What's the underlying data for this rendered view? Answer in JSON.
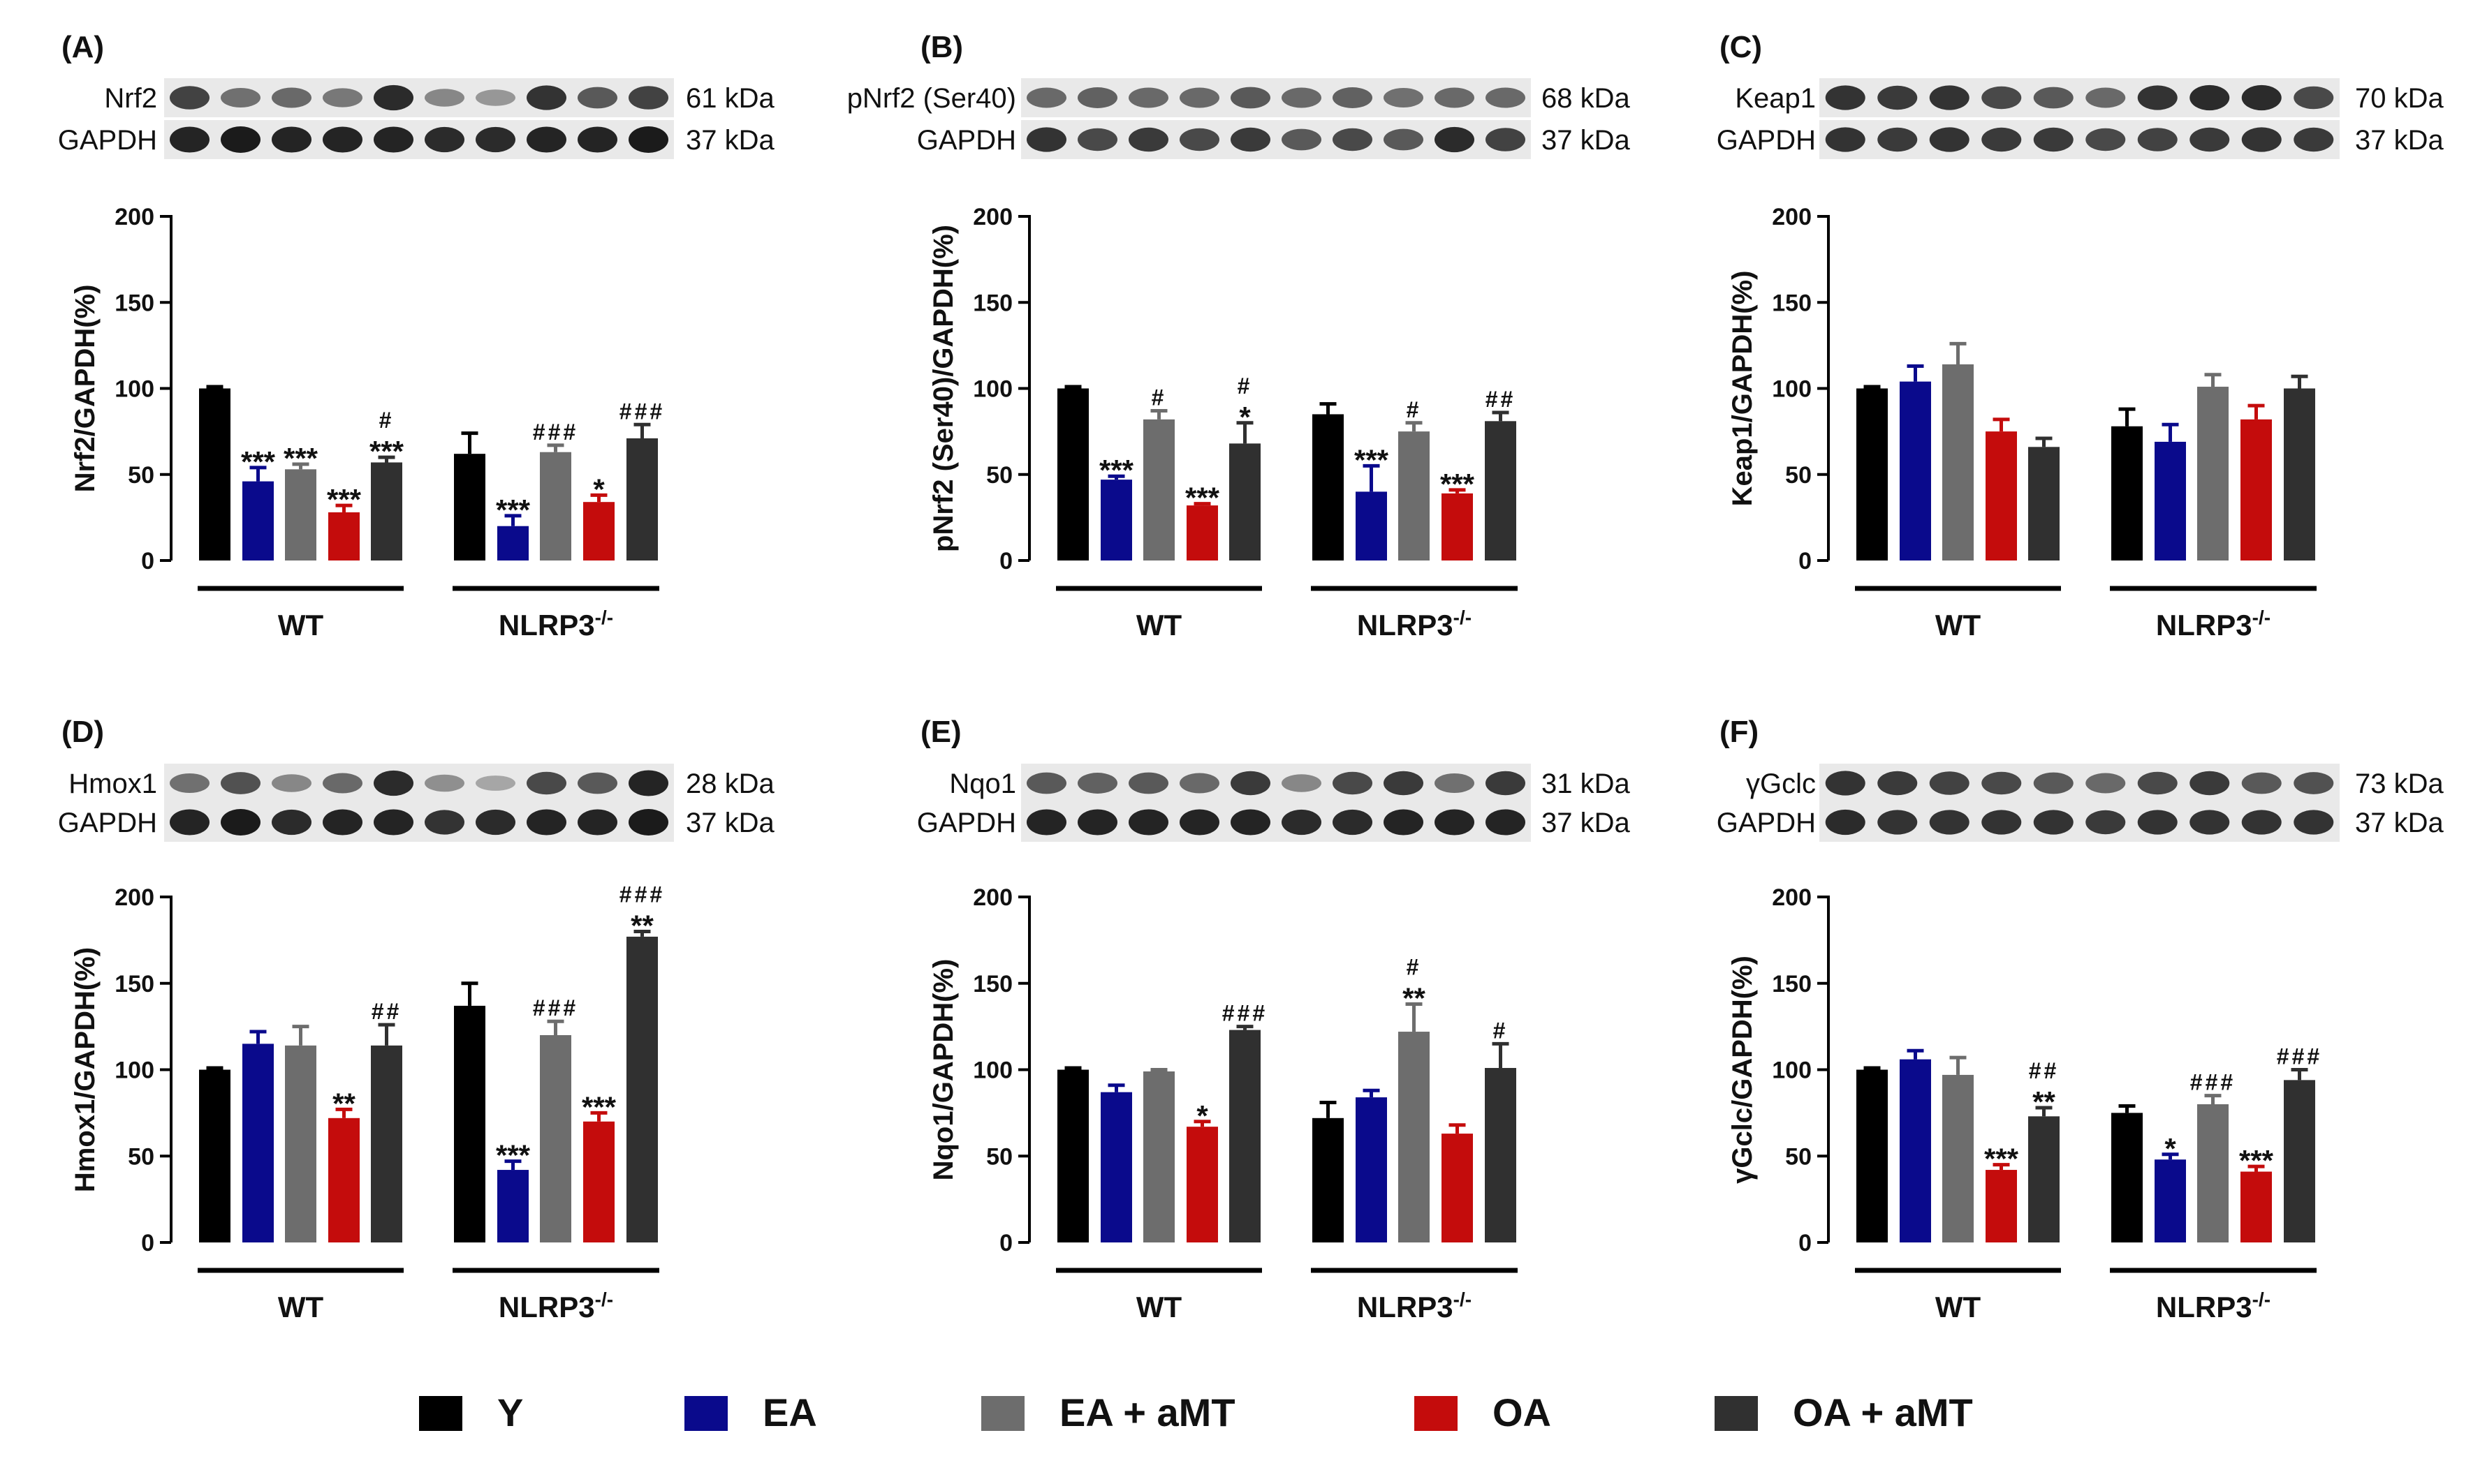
{
  "colors": {
    "Y": "#000000",
    "EA": "#0a0a8c",
    "EA + aMT": "#6d6d6d",
    "OA": "#c40c0c",
    "OA + aMT": "#303030",
    "blot_bg": "#e9e9e9",
    "blot_band": "#1b1b1b"
  },
  "legend": {
    "items": [
      {
        "label": "Y",
        "color_key": "Y"
      },
      {
        "label": "EA",
        "color_key": "EA"
      },
      {
        "label": "EA + aMT",
        "color_key": "EA + aMT"
      },
      {
        "label": "OA",
        "color_key": "OA"
      },
      {
        "label": "OA + aMT",
        "color_key": "OA + aMT"
      }
    ]
  },
  "chart_data": [
    {
      "type": "bar",
      "panel": "(A)",
      "ylabel": "Nrf2/GAPDH(%)",
      "ylim": [
        0,
        200
      ],
      "yticks": [
        "0",
        "50",
        "100",
        "150",
        "200"
      ],
      "groups": [
        {
          "name": "WT",
          "sup": ""
        },
        {
          "name": "NLRP3",
          "sup": "-/-"
        }
      ],
      "series": [
        "Y",
        "EA",
        "EA + aMT",
        "OA",
        "OA + aMT"
      ],
      "values": [
        [
          100,
          46,
          53,
          28,
          57
        ],
        [
          62,
          20,
          63,
          34,
          71
        ]
      ],
      "errors": [
        [
          1,
          8,
          3,
          4,
          3
        ],
        [
          12,
          6,
          4,
          4,
          8
        ]
      ],
      "annotations": [
        [
          "",
          "***",
          "***",
          "***",
          "#|***"
        ],
        [
          "",
          "***",
          "###",
          "*",
          "###"
        ]
      ],
      "blot": {
        "protein": "Nrf2",
        "protein_kda": "61 kDa",
        "loading": "GAPDH",
        "loading_kda": "37 kDa",
        "protein_bands": [
          0.75,
          0.45,
          0.5,
          0.4,
          0.9,
          0.3,
          0.2,
          0.85,
          0.6,
          0.75
        ],
        "loading_bands": [
          0.95,
          1,
          0.95,
          0.95,
          0.95,
          0.9,
          0.9,
          0.95,
          0.95,
          1
        ]
      }
    },
    {
      "type": "bar",
      "panel": "(B)",
      "ylabel": "pNrf2 (Ser40)/GAPDH(%)",
      "ylim": [
        0,
        200
      ],
      "yticks": [
        "0",
        "50",
        "100",
        "150",
        "200"
      ],
      "groups": [
        {
          "name": "WT",
          "sup": ""
        },
        {
          "name": "NLRP3",
          "sup": "-/-"
        }
      ],
      "series": [
        "Y",
        "EA",
        "EA + aMT",
        "OA",
        "OA + aMT"
      ],
      "values": [
        [
          100,
          47,
          82,
          32,
          68
        ],
        [
          85,
          40,
          75,
          39,
          81
        ]
      ],
      "errors": [
        [
          1,
          2,
          5,
          1,
          12
        ],
        [
          6,
          15,
          5,
          2,
          5
        ]
      ],
      "annotations": [
        [
          "",
          "***",
          "#",
          "***",
          "#|*"
        ],
        [
          "",
          "***",
          "#",
          "***",
          "##"
        ]
      ],
      "blot": {
        "protein": "pNrf2 (Ser40)",
        "protein_kda": "68 kDa",
        "loading": "GAPDH",
        "loading_kda": "37 kDa",
        "protein_bands": [
          0.5,
          0.55,
          0.5,
          0.5,
          0.6,
          0.5,
          0.55,
          0.45,
          0.5,
          0.5
        ],
        "loading_bands": [
          0.85,
          0.7,
          0.8,
          0.7,
          0.8,
          0.6,
          0.7,
          0.6,
          0.9,
          0.75
        ]
      }
    },
    {
      "type": "bar",
      "panel": "(C)",
      "ylabel": "Keap1/GAPDH(%)",
      "ylim": [
        0,
        200
      ],
      "yticks": [
        "0",
        "50",
        "100",
        "150",
        "200"
      ],
      "groups": [
        {
          "name": "WT",
          "sup": ""
        },
        {
          "name": "NLRP3",
          "sup": "-/-"
        }
      ],
      "series": [
        "Y",
        "EA",
        "EA + aMT",
        "OA",
        "OA + aMT"
      ],
      "values": [
        [
          100,
          104,
          114,
          75,
          66
        ],
        [
          78,
          69,
          101,
          82,
          100
        ]
      ],
      "errors": [
        [
          1,
          9,
          12,
          7,
          5
        ],
        [
          10,
          10,
          7,
          8,
          7
        ]
      ],
      "annotations": [
        [
          "",
          "",
          "",
          "",
          ""
        ],
        [
          "",
          "",
          "",
          "",
          ""
        ]
      ],
      "blot": {
        "protein": "Keap1",
        "protein_kda": "70 kDa",
        "loading": "GAPDH",
        "loading_kda": "37 kDa",
        "protein_bands": [
          0.85,
          0.8,
          0.85,
          0.7,
          0.6,
          0.5,
          0.85,
          0.9,
          0.9,
          0.7
        ],
        "loading_bands": [
          0.85,
          0.8,
          0.85,
          0.8,
          0.8,
          0.7,
          0.75,
          0.8,
          0.85,
          0.8
        ]
      }
    },
    {
      "type": "bar",
      "panel": "(D)",
      "ylabel": "Hmox1/GAPDH(%)",
      "ylim": [
        0,
        200
      ],
      "yticks": [
        "0",
        "50",
        "100",
        "150",
        "200"
      ],
      "groups": [
        {
          "name": "WT",
          "sup": ""
        },
        {
          "name": "NLRP3",
          "sup": "-/-"
        }
      ],
      "series": [
        "Y",
        "EA",
        "EA + aMT",
        "OA",
        "OA + aMT"
      ],
      "values": [
        [
          100,
          115,
          114,
          72,
          114
        ],
        [
          137,
          42,
          120,
          70,
          177
        ]
      ],
      "errors": [
        [
          1,
          7,
          11,
          5,
          12
        ],
        [
          13,
          5,
          8,
          5,
          3
        ]
      ],
      "annotations": [
        [
          "",
          "",
          "",
          "**",
          "##"
        ],
        [
          "",
          "***",
          "###",
          "***",
          "###|**"
        ]
      ],
      "blot": {
        "protein": "Hmox1",
        "protein_kda": "28 kDa",
        "loading": "GAPDH",
        "loading_kda": "37 kDa",
        "protein_bands": [
          0.45,
          0.65,
          0.3,
          0.5,
          0.9,
          0.25,
          0.1,
          0.7,
          0.6,
          0.95
        ],
        "loading_bands": [
          0.95,
          1,
          0.9,
          0.95,
          0.95,
          0.85,
          0.9,
          0.95,
          0.95,
          1
        ]
      }
    },
    {
      "type": "bar",
      "panel": "(E)",
      "ylabel": "Nqo1/GAPDH(%)",
      "ylim": [
        0,
        200
      ],
      "yticks": [
        "0",
        "50",
        "100",
        "150",
        "200"
      ],
      "groups": [
        {
          "name": "WT",
          "sup": ""
        },
        {
          "name": "NLRP3",
          "sup": "-/-"
        }
      ],
      "series": [
        "Y",
        "EA",
        "EA + aMT",
        "OA",
        "OA + aMT"
      ],
      "values": [
        [
          100,
          87,
          99,
          67,
          123
        ],
        [
          72,
          84,
          122,
          63,
          101
        ]
      ],
      "errors": [
        [
          1,
          4,
          1,
          3,
          2
        ],
        [
          9,
          4,
          16,
          5,
          14
        ]
      ],
      "annotations": [
        [
          "",
          "",
          "",
          "*",
          "###"
        ],
        [
          "",
          "",
          "#|**",
          "",
          "#"
        ]
      ],
      "blot": {
        "protein": "Nqo1",
        "protein_kda": "31 kDa",
        "loading": "GAPDH",
        "loading_kda": "37 kDa",
        "protein_bands": [
          0.6,
          0.55,
          0.6,
          0.5,
          0.8,
          0.3,
          0.7,
          0.8,
          0.45,
          0.8
        ],
        "loading_bands": [
          0.95,
          0.95,
          0.95,
          0.95,
          0.95,
          0.9,
          0.9,
          0.95,
          0.95,
          0.95
        ]
      }
    },
    {
      "type": "bar",
      "panel": "(F)",
      "ylabel": "γGclc/GAPDH(%)",
      "ylim": [
        0,
        200
      ],
      "yticks": [
        "0",
        "50",
        "100",
        "150",
        "200"
      ],
      "groups": [
        {
          "name": "WT",
          "sup": ""
        },
        {
          "name": "NLRP3",
          "sup": "-/-"
        }
      ],
      "series": [
        "Y",
        "EA",
        "EA + aMT",
        "OA",
        "OA + aMT"
      ],
      "values": [
        [
          100,
          106,
          97,
          42,
          73
        ],
        [
          75,
          48,
          80,
          41,
          94
        ]
      ],
      "errors": [
        [
          1,
          5,
          10,
          3,
          5
        ],
        [
          4,
          3,
          5,
          3,
          6
        ]
      ],
      "annotations": [
        [
          "",
          "",
          "",
          "***",
          "##|**"
        ],
        [
          "",
          "*",
          "###",
          "***",
          "###"
        ]
      ],
      "blot": {
        "protein": "γGclc",
        "protein_kda": "73 kDa",
        "loading": "GAPDH",
        "loading_kda": "37 kDa",
        "protein_bands": [
          0.85,
          0.8,
          0.75,
          0.7,
          0.6,
          0.5,
          0.7,
          0.8,
          0.6,
          0.65
        ],
        "loading_bands": [
          0.9,
          0.85,
          0.85,
          0.85,
          0.85,
          0.8,
          0.85,
          0.85,
          0.85,
          0.85
        ]
      }
    }
  ]
}
